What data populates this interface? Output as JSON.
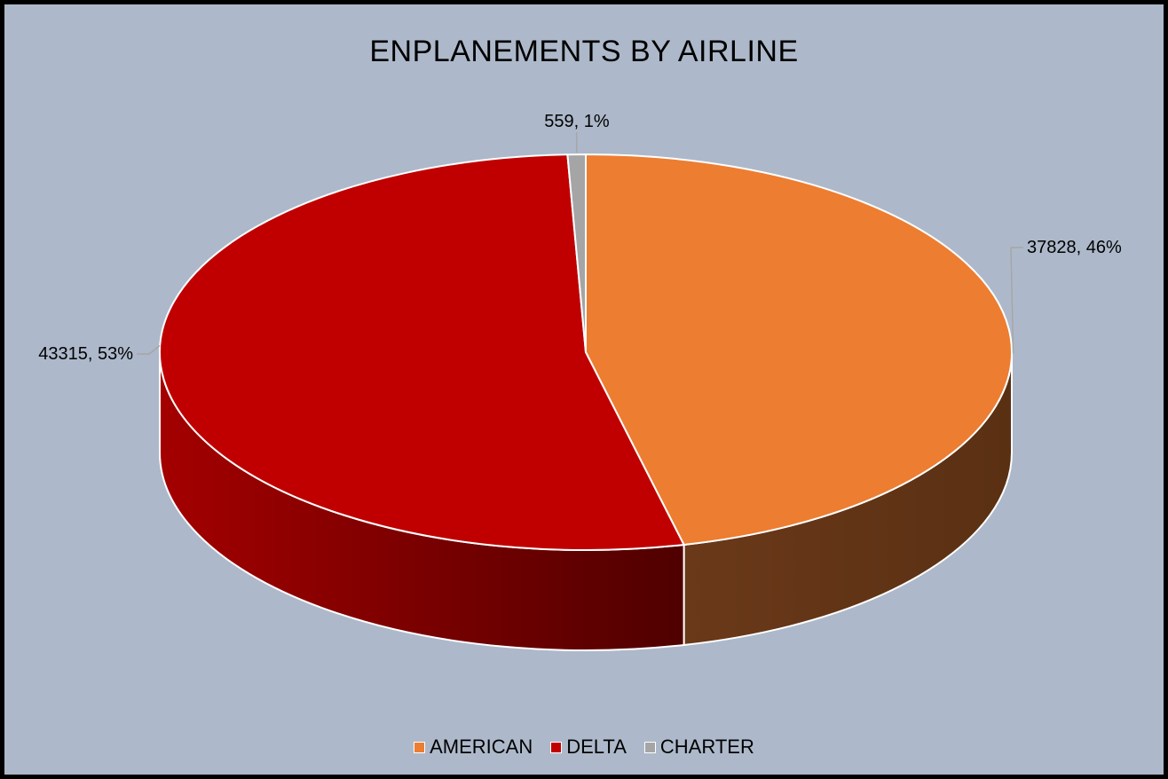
{
  "chart_data": {
    "type": "pie",
    "style": "3d",
    "title": "ENPLANEMENTS BY AIRLINE",
    "categories": [
      "AMERICAN",
      "DELTA",
      "CHARTER"
    ],
    "values": [
      37828,
      43315,
      559
    ],
    "percent_labels": [
      "46%",
      "53%",
      "1%"
    ],
    "data_labels": [
      "37828, 46%",
      "43315, 53%",
      "559, 1%"
    ],
    "colors": [
      "#ed7d31",
      "#c00000",
      "#a5a5a5"
    ],
    "side_colors": [
      "#603215",
      "#7a0000",
      "#6b6b6b"
    ],
    "legend_position": "bottom",
    "background": "#adb9ca"
  }
}
